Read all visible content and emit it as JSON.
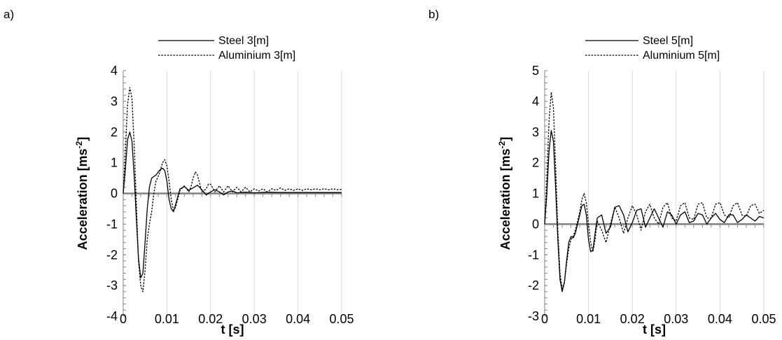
{
  "chart_data": [
    {
      "type": "line",
      "panel_label": "a)",
      "xlabel": "t [s]",
      "ylabel": "Acceleration [ms-2]",
      "ylabel_base": "Acceleration [ms",
      "ylabel_sup": "-2",
      "ylabel_end": "]",
      "xlim": [
        0,
        0.05
      ],
      "ylim": [
        -4,
        4
      ],
      "x_ticks": [
        "0",
        "0.01",
        "0.02",
        "0.03",
        "0.04",
        "0.05"
      ],
      "y_ticks": [
        "-4",
        "-3",
        "-2",
        "-1",
        "0",
        "1",
        "2",
        "3",
        "4"
      ],
      "grid": "vertical",
      "legend_position": "top-right",
      "series": [
        {
          "name": "Steel 3[m]",
          "style": "solid",
          "color": "#000000",
          "x": [
            0,
            0.0005,
            0.001,
            0.0015,
            0.002,
            0.0025,
            0.003,
            0.0035,
            0.004,
            0.0045,
            0.005,
            0.0055,
            0.006,
            0.0065,
            0.007,
            0.0075,
            0.008,
            0.0085,
            0.009,
            0.0095,
            0.01,
            0.0105,
            0.011,
            0.0115,
            0.012,
            0.013,
            0.014,
            0.015,
            0.016,
            0.017,
            0.018,
            0.019,
            0.02,
            0.021,
            0.022,
            0.023,
            0.024,
            0.025,
            0.026,
            0.028,
            0.03,
            0.033,
            0.036,
            0.04,
            0.045,
            0.05
          ],
          "y": [
            0,
            0.8,
            1.75,
            2.0,
            1.7,
            0.6,
            -0.8,
            -2.1,
            -2.75,
            -2.6,
            -1.6,
            -0.5,
            0.2,
            0.5,
            0.55,
            0.6,
            0.7,
            0.78,
            0.82,
            0.75,
            0.4,
            -0.2,
            -0.5,
            -0.6,
            -0.35,
            0.15,
            0.22,
            0.1,
            0.18,
            0.27,
            0.12,
            -0.05,
            0.05,
            0.12,
            0.05,
            -0.05,
            0.05,
            0.08,
            0.02,
            0.04,
            0.02,
            0.04,
            0.03,
            0.03,
            0.03,
            0.03
          ]
        },
        {
          "name": "Aluminium 3[m]",
          "style": "dashed",
          "color": "#000000",
          "x": [
            0,
            0.0005,
            0.001,
            0.0015,
            0.002,
            0.0025,
            0.003,
            0.0035,
            0.004,
            0.0045,
            0.005,
            0.0055,
            0.006,
            0.0065,
            0.007,
            0.0075,
            0.008,
            0.0085,
            0.009,
            0.0095,
            0.01,
            0.0105,
            0.011,
            0.0115,
            0.012,
            0.013,
            0.014,
            0.015,
            0.0155,
            0.016,
            0.0165,
            0.017,
            0.018,
            0.019,
            0.0195,
            0.02,
            0.021,
            0.022,
            0.023,
            0.024,
            0.025,
            0.026,
            0.027,
            0.028,
            0.029,
            0.03,
            0.031,
            0.032,
            0.033,
            0.034,
            0.035,
            0.036,
            0.037,
            0.038,
            0.039,
            0.04,
            0.041,
            0.042,
            0.043,
            0.044,
            0.045,
            0.046,
            0.047,
            0.048,
            0.049,
            0.05
          ],
          "y": [
            0,
            1.4,
            2.9,
            3.45,
            3.1,
            1.6,
            -0.3,
            -2.2,
            -3.0,
            -3.2,
            -2.5,
            -1.5,
            -1.0,
            -0.6,
            0,
            0.4,
            0.55,
            0.75,
            1.0,
            1.1,
            0.9,
            0.4,
            -0.2,
            -0.55,
            -0.45,
            0.1,
            0.25,
            0.05,
            0.2,
            0.5,
            0.7,
            0.6,
            0.05,
            0.15,
            0.3,
            0.3,
            0.05,
            0.25,
            0.05,
            0.25,
            0.05,
            0.2,
            0.05,
            0.2,
            0.05,
            0.15,
            0.08,
            0.15,
            0.05,
            0.15,
            0.1,
            0.18,
            0.1,
            0.15,
            0.1,
            0.15,
            0.1,
            0.15,
            0.12,
            0.15,
            0.12,
            0.15,
            0.12,
            0.15,
            0.12,
            0.13
          ]
        }
      ]
    },
    {
      "type": "line",
      "panel_label": "b)",
      "xlabel": "t [s]",
      "ylabel": "Acceleration [ms-2]",
      "ylabel_base": "Acceleration [ms",
      "ylabel_sup": "-2",
      "ylabel_end": "]",
      "xlim": [
        0,
        0.05
      ],
      "ylim": [
        -3,
        5
      ],
      "x_ticks": [
        "0",
        "0.01",
        "0.02",
        "0.03",
        "0.04",
        "0.05"
      ],
      "y_ticks": [
        "-3",
        "-2",
        "-1",
        "0",
        "1",
        "2",
        "3",
        "4",
        "5"
      ],
      "grid": "vertical",
      "legend_position": "top-right",
      "series": [
        {
          "name": "Steel 5[m]",
          "style": "solid",
          "color": "#000000",
          "x": [
            0,
            0.0005,
            0.001,
            0.0015,
            0.002,
            0.0025,
            0.003,
            0.0035,
            0.004,
            0.0045,
            0.005,
            0.0055,
            0.006,
            0.0065,
            0.007,
            0.0075,
            0.008,
            0.0085,
            0.009,
            0.0095,
            0.01,
            0.0105,
            0.011,
            0.0115,
            0.012,
            0.013,
            0.014,
            0.015,
            0.016,
            0.017,
            0.018,
            0.019,
            0.02,
            0.021,
            0.022,
            0.023,
            0.024,
            0.025,
            0.026,
            0.027,
            0.028,
            0.029,
            0.03,
            0.031,
            0.032,
            0.033,
            0.034,
            0.035,
            0.036,
            0.037,
            0.038,
            0.039,
            0.04,
            0.041,
            0.042,
            0.043,
            0.044,
            0.045,
            0.046,
            0.047,
            0.048,
            0.049,
            0.05
          ],
          "y": [
            0,
            1.0,
            2.4,
            3.05,
            2.7,
            1.2,
            -0.5,
            -1.8,
            -2.2,
            -1.9,
            -1.2,
            -0.6,
            -0.4,
            -0.45,
            -0.3,
            0,
            0.3,
            0.6,
            0.65,
            0.3,
            -0.5,
            -0.9,
            -0.85,
            -0.3,
            0.2,
            0.3,
            -0.3,
            -0.1,
            0.55,
            0.6,
            0.3,
            -0.25,
            0.05,
            0.45,
            0.5,
            -0.1,
            0.2,
            0.5,
            0.2,
            -0.1,
            0.4,
            0.3,
            0.0,
            0.3,
            0.4,
            0.05,
            0.1,
            0.35,
            0.3,
            0.0,
            0.2,
            0.35,
            0.15,
            0.05,
            0.3,
            0.3,
            0.05,
            0.15,
            0.3,
            0.2,
            0.1,
            0.25,
            0.2
          ]
        },
        {
          "name": "Aluminium 5[m]",
          "style": "dashed",
          "color": "#000000",
          "x": [
            0,
            0.0005,
            0.001,
            0.0015,
            0.002,
            0.0025,
            0.003,
            0.0035,
            0.004,
            0.0045,
            0.005,
            0.0055,
            0.006,
            0.0065,
            0.007,
            0.0075,
            0.008,
            0.0085,
            0.009,
            0.0095,
            0.01,
            0.0105,
            0.011,
            0.0115,
            0.012,
            0.013,
            0.014,
            0.015,
            0.016,
            0.017,
            0.018,
            0.019,
            0.02,
            0.021,
            0.022,
            0.023,
            0.024,
            0.025,
            0.026,
            0.027,
            0.028,
            0.029,
            0.03,
            0.031,
            0.032,
            0.033,
            0.034,
            0.035,
            0.036,
            0.037,
            0.038,
            0.039,
            0.04,
            0.041,
            0.042,
            0.043,
            0.044,
            0.045,
            0.046,
            0.047,
            0.048,
            0.049,
            0.05
          ],
          "y": [
            0,
            1.5,
            3.4,
            4.3,
            3.8,
            1.9,
            -0.2,
            -1.6,
            -2.1,
            -1.9,
            -1.3,
            -0.8,
            -0.5,
            -0.4,
            -0.2,
            0.1,
            0.4,
            0.8,
            1.0,
            0.7,
            0.0,
            -0.6,
            -0.9,
            -0.5,
            0.1,
            -0.2,
            -0.6,
            0.0,
            0.55,
            0.2,
            -0.3,
            0.2,
            0.6,
            0.3,
            -0.2,
            0.4,
            0.65,
            0.2,
            0.0,
            0.55,
            0.7,
            0.2,
            0.1,
            0.6,
            0.7,
            0.2,
            0.15,
            0.65,
            0.7,
            0.2,
            0.2,
            0.65,
            0.7,
            0.3,
            0.2,
            0.6,
            0.7,
            0.3,
            0.25,
            0.6,
            0.65,
            0.35,
            0.45
          ]
        }
      ]
    }
  ]
}
